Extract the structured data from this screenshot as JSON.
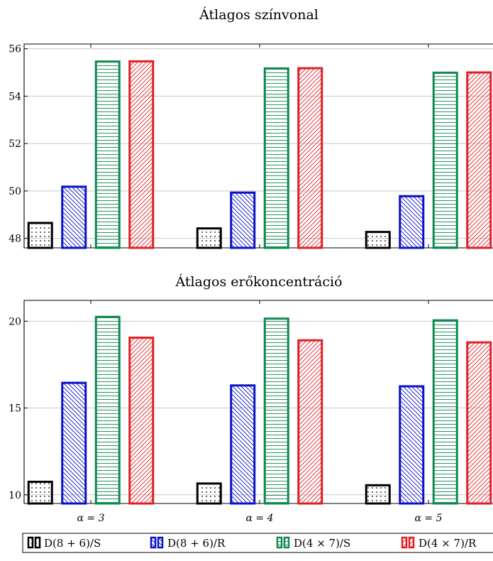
{
  "chart_data": [
    {
      "type": "bar",
      "title": "Átlagos színvonal",
      "ylim": [
        47.6,
        56.2
      ],
      "yticks": [
        48,
        50,
        52,
        54,
        56
      ],
      "grid": true,
      "categories": [
        "α = 3",
        "α = 4",
        "α = 5"
      ],
      "series": [
        {
          "name": "D(8 + 6)/S",
          "values": [
            48.65,
            48.42,
            48.27
          ]
        },
        {
          "name": "D(8 + 6)/R",
          "values": [
            50.18,
            49.93,
            49.78
          ]
        },
        {
          "name": "D(4 × 7)/S",
          "values": [
            55.46,
            55.17,
            54.99
          ]
        },
        {
          "name": "D(4 × 7)/R",
          "values": [
            55.47,
            55.18,
            55.0
          ]
        }
      ]
    },
    {
      "type": "bar",
      "title": "Átlagos erőkoncentráció",
      "ylim": [
        9.5,
        21.2
      ],
      "yticks": [
        10,
        15,
        20
      ],
      "grid": true,
      "categories": [
        "α = 3",
        "α = 4",
        "α = 5"
      ],
      "series": [
        {
          "name": "D(8 + 6)/S",
          "values": [
            10.75,
            10.65,
            10.55
          ]
        },
        {
          "name": "D(8 + 6)/R",
          "values": [
            16.45,
            16.3,
            16.25
          ]
        },
        {
          "name": "D(4 × 7)/S",
          "values": [
            20.25,
            20.15,
            20.05
          ]
        },
        {
          "name": "D(4 × 7)/R",
          "values": [
            19.05,
            18.9,
            18.78
          ]
        }
      ]
    }
  ],
  "legend": {
    "placement": "bottom",
    "items": [
      {
        "label": "D(8 + 6)/S",
        "color": "#000000",
        "pattern": "dots"
      },
      {
        "label": "D(8 + 6)/R",
        "color": "#0a10c8",
        "pattern": "diag-back"
      },
      {
        "label": "D(4 × 7)/S",
        "color": "#0e8a4f",
        "pattern": "horizontal"
      },
      {
        "label": "D(4 × 7)/R",
        "color": "#e01f24",
        "pattern": "diag-fwd"
      }
    ]
  }
}
